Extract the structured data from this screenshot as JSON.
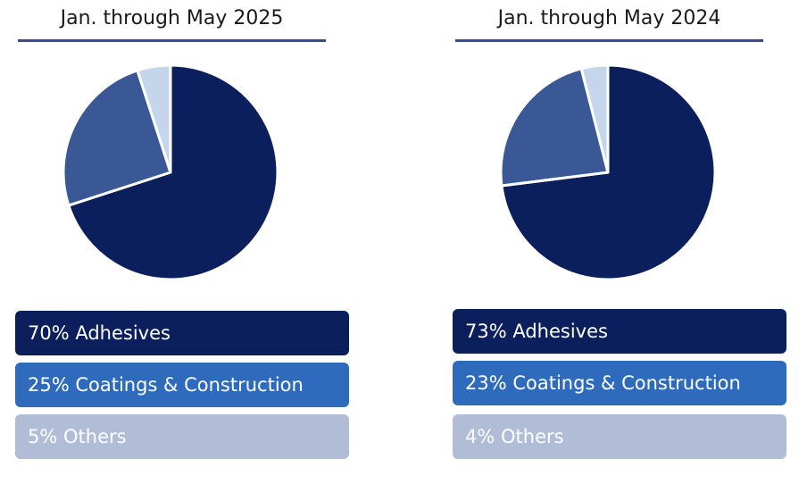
{
  "chart_data": [
    {
      "type": "pie",
      "title": "Jan. through May 2025",
      "slices": [
        {
          "label": "Adhesives",
          "value": 70,
          "display": "70% Adhesives",
          "color": "#0b1f5c",
          "legend_color": "#0b1f5c"
        },
        {
          "label": "Coatings & Construction",
          "value": 25,
          "display": "25% Coatings & Construction",
          "color": "#3a5796",
          "legend_color": "#2f6bbd"
        },
        {
          "label": "Others",
          "value": 5,
          "display": "5% Others",
          "color": "#c5d6ec",
          "legend_color": "#b1bdd6"
        }
      ]
    },
    {
      "type": "pie",
      "title": "Jan. through May 2024",
      "slices": [
        {
          "label": "Adhesives",
          "value": 73,
          "display": "73% Adhesives",
          "color": "#0b1f5c",
          "legend_color": "#0b1f5c"
        },
        {
          "label": "Coatings & Construction",
          "value": 23,
          "display": "23% Coatings & Construction",
          "color": "#3a5796",
          "legend_color": "#2f6bbd"
        },
        {
          "label": "Others",
          "value": 4,
          "display": "4% Others",
          "color": "#c5d6ec",
          "legend_color": "#b1bdd6"
        }
      ]
    }
  ],
  "colors": {
    "title_rule": "#3b4d78"
  }
}
